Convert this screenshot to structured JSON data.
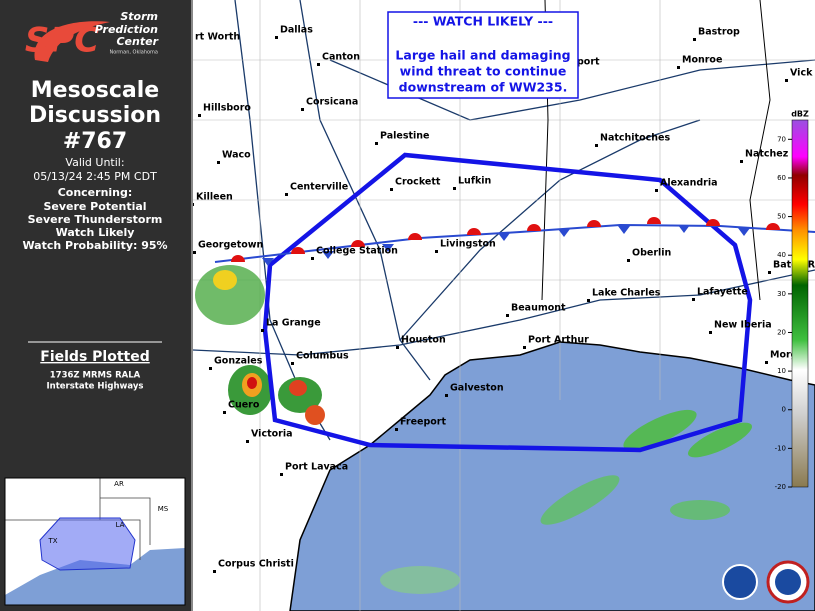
{
  "sidebar": {
    "logo": {
      "mark": "SPC",
      "lines": [
        "Storm",
        "Prediction",
        "Center"
      ],
      "place": "Norman, Oklahoma"
    },
    "title_lines": [
      "Mesoscale",
      "Discussion",
      "#767"
    ],
    "valid_lines": [
      "Valid Until:",
      "05/13/24 2:45 PM CDT"
    ],
    "concerning_lines": [
      "Concerning:",
      "Severe Potential",
      "Severe Thunderstorm",
      "Watch Likely",
      "Watch Probability: 95%"
    ],
    "fields_title": "Fields Plotted",
    "fields_lines": [
      "1736Z MRMS RALA",
      "Interstate Highways"
    ]
  },
  "map": {
    "cities": [
      "rt Worth",
      "Dallas",
      "Canton",
      "Hillsboro",
      "Corsicana",
      "Waco",
      "Palestine",
      "Killeen",
      "Centerville",
      "Crockett",
      "Lufkin",
      "Georgetown",
      "College Station",
      "Livingston",
      "Natchitoches",
      "Alexandria",
      "Oberlin",
      "Bastrop",
      "Monroe",
      "port",
      "Vick",
      "Natchez",
      "Baton R",
      "Lafayette",
      "Lake Charles",
      "Beaumont",
      "New Iberia",
      "Morga",
      "Port Arthur",
      "La Grange",
      "Houston",
      "Columbus",
      "Gonzales",
      "Galveston",
      "Cuero",
      "Freeport",
      "Victoria",
      "Port Lavaca",
      "Corpus Christi"
    ],
    "watch_box_lines": [
      "--- WATCH LIKELY ---",
      "Large hail and damaging",
      "wind threat to continue",
      "downstream of WW235."
    ],
    "colorbar": {
      "title": "dBZ",
      "range": [
        -20,
        75
      ],
      "ticks": [
        70,
        60,
        50,
        40,
        30,
        20,
        10,
        0,
        -10,
        -20
      ]
    }
  },
  "inset": {
    "labels": [
      "AR",
      "MS",
      "LA",
      "TX"
    ]
  }
}
